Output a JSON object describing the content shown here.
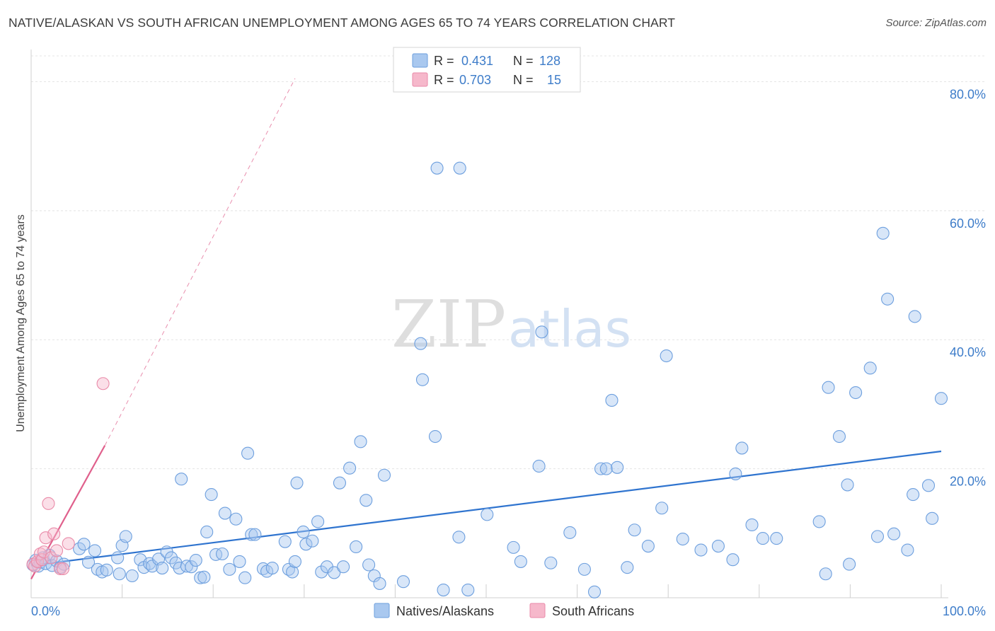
{
  "title": "NATIVE/ALASKAN VS SOUTH AFRICAN UNEMPLOYMENT AMONG AGES 65 TO 74 YEARS CORRELATION CHART",
  "source": "Source: ZipAtlas.com",
  "watermark": {
    "zip": "ZIP",
    "atlas": "atlas"
  },
  "colors": {
    "blue_fill": "#a9c8ef",
    "blue_stroke": "#6d9fde",
    "blue_line": "#2f74cf",
    "pink_fill": "#f6b8cb",
    "pink_stroke": "#e98aa8",
    "pink_line": "#e0608c",
    "tick_text": "#3d7cc9",
    "grid": "#e4e4e4"
  },
  "legend": {
    "rows": [
      {
        "r_label": "R =",
        "r_value": "0.431",
        "n_label": "N =",
        "n_value": "128",
        "series": "blue"
      },
      {
        "r_label": "R =",
        "r_value": "0.703",
        "n_label": "N =",
        "n_value": "15",
        "series": "pink"
      }
    ]
  },
  "chart_data": {
    "type": "scatter",
    "title": "NATIVE/ALASKAN VS SOUTH AFRICAN UNEMPLOYMENT AMONG AGES 65 TO 74 YEARS CORRELATION CHART",
    "xlabel": "",
    "ylabel": "Unemployment Among Ages 65 to 74 years",
    "xlim": [
      0,
      100
    ],
    "ylim": [
      0,
      84
    ],
    "x_tick_labels": [
      {
        "value": 0,
        "label": "0.0%"
      },
      {
        "value": 100,
        "label": "100.0%"
      }
    ],
    "y_ticks": [
      {
        "value": 20,
        "label": "20.0%"
      },
      {
        "value": 40,
        "label": "40.0%"
      },
      {
        "value": 60,
        "label": "60.0%"
      },
      {
        "value": 80,
        "label": "80.0%"
      }
    ],
    "x_minor_ticks": [
      10,
      20,
      30,
      40,
      50,
      60,
      70,
      80,
      90,
      100
    ],
    "grid": true,
    "legend_position": "top-center",
    "series": [
      {
        "name": "Natives/Alaskans",
        "color": "blue",
        "trend": {
          "x0": 0,
          "y0": 5.0,
          "x1": 100,
          "y1": 22.7,
          "dashed_extension": false
        },
        "points": [
          [
            0.2,
            5.1
          ],
          [
            0.5,
            5.8
          ],
          [
            0.8,
            4.9
          ],
          [
            1.0,
            5.5
          ],
          [
            1.3,
            6.2
          ],
          [
            1.6,
            5.3
          ],
          [
            2.0,
            6.6
          ],
          [
            2.3,
            5.0
          ],
          [
            2.8,
            5.7
          ],
          [
            3.2,
            4.7
          ],
          [
            3.6,
            5.2
          ],
          [
            5.3,
            7.6
          ],
          [
            5.8,
            8.3
          ],
          [
            6.3,
            5.5
          ],
          [
            7.0,
            7.3
          ],
          [
            7.3,
            4.4
          ],
          [
            7.8,
            4.0
          ],
          [
            8.3,
            4.3
          ],
          [
            9.5,
            6.2
          ],
          [
            9.7,
            3.7
          ],
          [
            10.0,
            8.1
          ],
          [
            10.4,
            9.5
          ],
          [
            11.1,
            3.4
          ],
          [
            12.0,
            5.9
          ],
          [
            12.4,
            4.7
          ],
          [
            13.0,
            5.3
          ],
          [
            13.3,
            4.9
          ],
          [
            14.0,
            6.0
          ],
          [
            14.4,
            4.6
          ],
          [
            14.9,
            7.1
          ],
          [
            15.4,
            6.2
          ],
          [
            15.9,
            5.4
          ],
          [
            16.3,
            4.6
          ],
          [
            16.5,
            18.4
          ],
          [
            17.1,
            4.9
          ],
          [
            17.6,
            4.8
          ],
          [
            18.1,
            5.8
          ],
          [
            18.6,
            3.1
          ],
          [
            19.0,
            3.2
          ],
          [
            19.3,
            10.2
          ],
          [
            19.8,
            16.0
          ],
          [
            20.3,
            6.7
          ],
          [
            21.0,
            6.8
          ],
          [
            21.3,
            13.1
          ],
          [
            21.8,
            4.4
          ],
          [
            22.5,
            12.2
          ],
          [
            22.9,
            5.6
          ],
          [
            23.5,
            3.1
          ],
          [
            23.8,
            22.4
          ],
          [
            24.2,
            9.8
          ],
          [
            24.6,
            9.8
          ],
          [
            25.5,
            4.5
          ],
          [
            25.9,
            4.1
          ],
          [
            26.5,
            4.6
          ],
          [
            27.9,
            8.7
          ],
          [
            28.3,
            4.4
          ],
          [
            28.7,
            4.0
          ],
          [
            29.0,
            5.6
          ],
          [
            29.2,
            17.8
          ],
          [
            29.9,
            10.2
          ],
          [
            30.2,
            8.3
          ],
          [
            30.9,
            8.8
          ],
          [
            31.5,
            11.8
          ],
          [
            31.9,
            4.0
          ],
          [
            32.5,
            4.8
          ],
          [
            33.3,
            3.9
          ],
          [
            33.9,
            17.8
          ],
          [
            34.3,
            4.8
          ],
          [
            35.0,
            20.1
          ],
          [
            35.7,
            7.9
          ],
          [
            36.2,
            24.2
          ],
          [
            36.8,
            15.1
          ],
          [
            37.1,
            5.1
          ],
          [
            37.7,
            3.4
          ],
          [
            38.3,
            2.2
          ],
          [
            38.8,
            19.0
          ],
          [
            40.9,
            2.5
          ],
          [
            42.8,
            39.4
          ],
          [
            43.0,
            33.8
          ],
          [
            44.4,
            25.0
          ],
          [
            44.6,
            66.6
          ],
          [
            45.3,
            1.2
          ],
          [
            47.0,
            9.4
          ],
          [
            47.1,
            66.6
          ],
          [
            48.0,
            1.2
          ],
          [
            50.1,
            12.9
          ],
          [
            53.0,
            7.8
          ],
          [
            53.8,
            5.6
          ],
          [
            55.8,
            20.4
          ],
          [
            56.1,
            41.2
          ],
          [
            57.1,
            5.4
          ],
          [
            59.2,
            10.1
          ],
          [
            60.8,
            4.4
          ],
          [
            61.9,
            0.9
          ],
          [
            62.6,
            20.0
          ],
          [
            63.2,
            20.0
          ],
          [
            63.8,
            30.6
          ],
          [
            64.4,
            20.2
          ],
          [
            65.5,
            4.7
          ],
          [
            66.3,
            10.5
          ],
          [
            67.8,
            8.0
          ],
          [
            69.3,
            13.9
          ],
          [
            69.8,
            37.5
          ],
          [
            71.6,
            9.1
          ],
          [
            73.6,
            7.4
          ],
          [
            75.5,
            8.0
          ],
          [
            77.1,
            5.9
          ],
          [
            77.4,
            19.2
          ],
          [
            78.1,
            23.2
          ],
          [
            79.2,
            11.3
          ],
          [
            80.4,
            9.2
          ],
          [
            81.9,
            9.2
          ],
          [
            86.6,
            11.8
          ],
          [
            87.3,
            3.7
          ],
          [
            87.6,
            32.6
          ],
          [
            88.8,
            25.0
          ],
          [
            89.7,
            17.5
          ],
          [
            89.9,
            5.2
          ],
          [
            90.6,
            31.8
          ],
          [
            92.2,
            35.6
          ],
          [
            93.0,
            9.5
          ],
          [
            93.6,
            56.5
          ],
          [
            94.1,
            46.3
          ],
          [
            94.8,
            9.9
          ],
          [
            96.3,
            7.4
          ],
          [
            96.9,
            16.0
          ],
          [
            97.1,
            43.6
          ],
          [
            98.6,
            17.4
          ],
          [
            99.0,
            12.3
          ],
          [
            100.0,
            30.9
          ]
        ]
      },
      {
        "name": "South Africans",
        "color": "pink",
        "trend": {
          "x0": 0,
          "y0": 2.9,
          "x1": 8.1,
          "y1": 23.6,
          "dashed_extension": true,
          "dashed_to": {
            "x": 29.0,
            "y": 80.5
          }
        },
        "points": [
          [
            0.2,
            5.2
          ],
          [
            0.4,
            4.9
          ],
          [
            0.7,
            5.6
          ],
          [
            1.0,
            6.8
          ],
          [
            1.2,
            5.9
          ],
          [
            1.4,
            7.1
          ],
          [
            1.6,
            9.3
          ],
          [
            1.9,
            14.6
          ],
          [
            2.2,
            6.2
          ],
          [
            2.5,
            9.9
          ],
          [
            2.8,
            7.3
          ],
          [
            3.2,
            4.5
          ],
          [
            3.5,
            4.5
          ],
          [
            4.1,
            8.4
          ],
          [
            7.9,
            33.2
          ]
        ]
      }
    ]
  },
  "bottom_legend": [
    {
      "label": "Natives/Alaskans",
      "series": "blue"
    },
    {
      "label": "South Africans",
      "series": "pink"
    }
  ]
}
